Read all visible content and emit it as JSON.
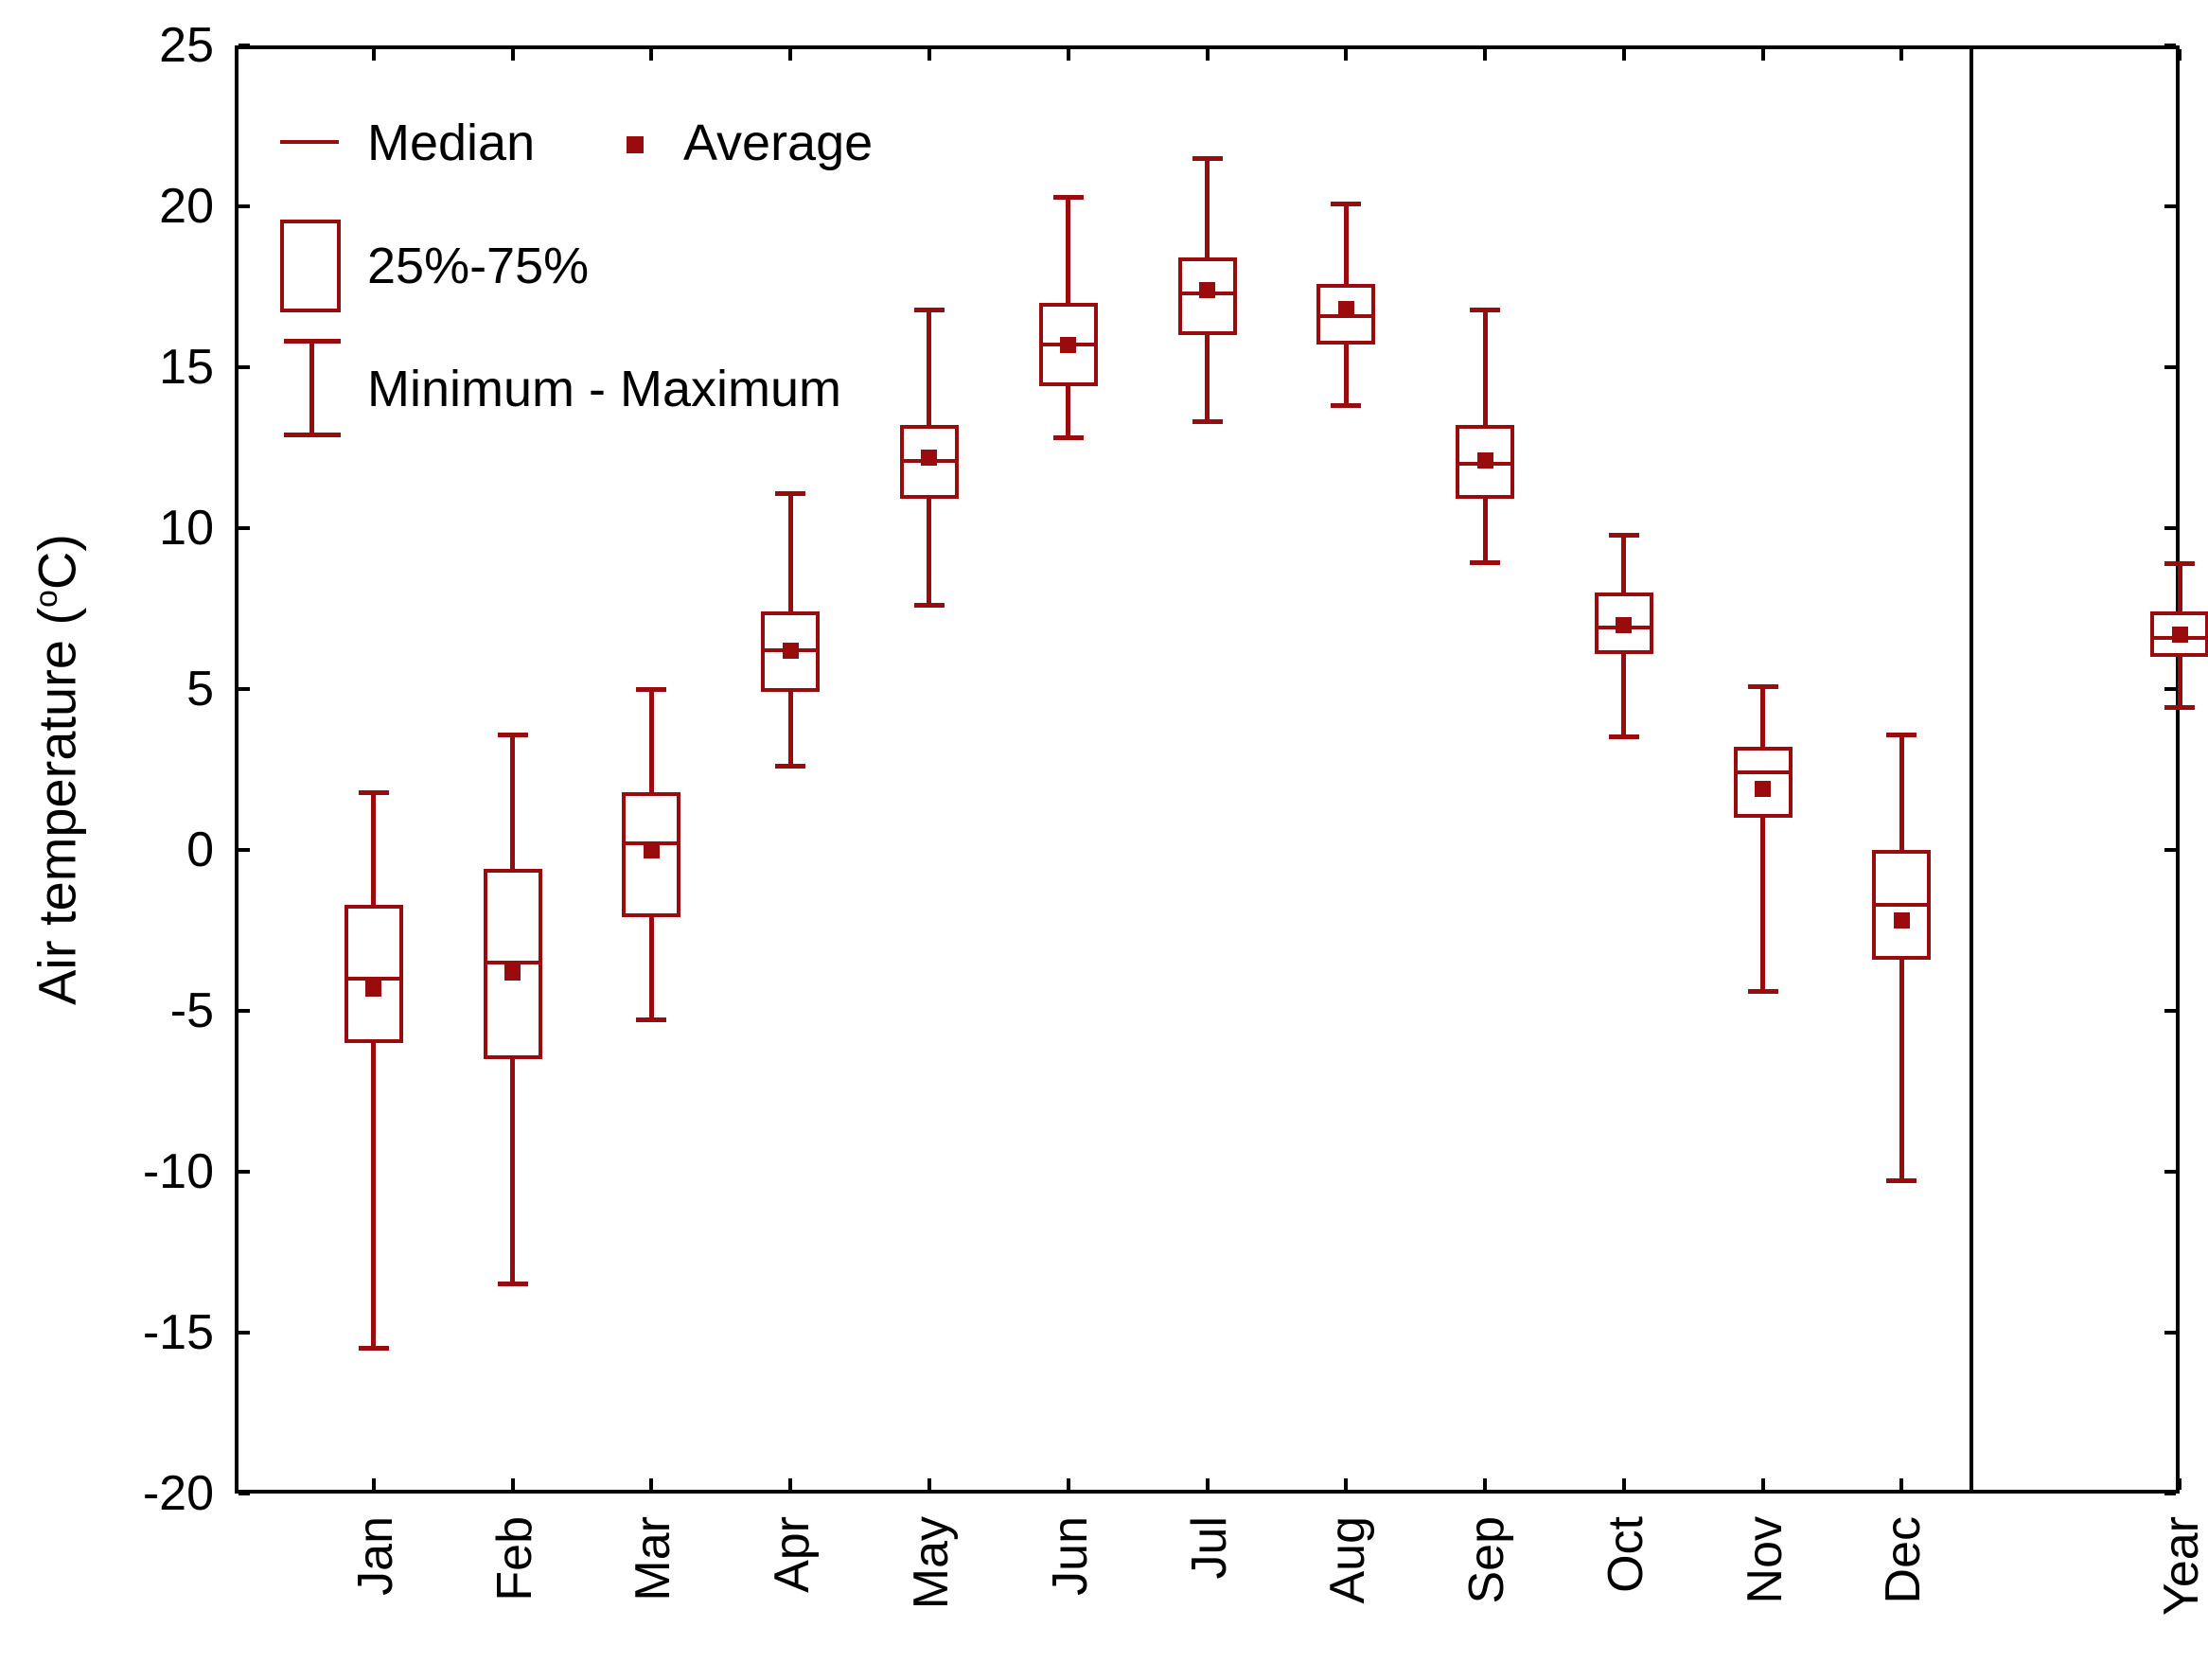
{
  "colors": {
    "series": "#9a0b0d",
    "axis": "#000000",
    "text": "#000000",
    "background": "#ffffff"
  },
  "y_axis": {
    "title_prefix": "Air temperature (",
    "title_sup": "o",
    "title_suffix": "C)"
  },
  "legend": {
    "median_label": "Median",
    "average_label": "Average",
    "box_label": "25%-75%",
    "whisker_label": "Minimum - Maximum"
  },
  "chart_data": {
    "type": "box",
    "title": "",
    "xlabel": "",
    "ylabel": "Air temperature (oC)",
    "ylim": [
      -20,
      25
    ],
    "ytick_step": 5,
    "ytick_values": [
      -20,
      -15,
      -10,
      -5,
      0,
      5,
      10,
      15,
      20,
      25
    ],
    "grid": false,
    "legend_position": "top-left-inside",
    "legend_entries": [
      "Median",
      "Average",
      "25%-75%",
      "Minimum - Maximum"
    ],
    "separator_before_category": "Year",
    "categories": [
      "Jan",
      "Feb",
      "Mar",
      "Apr",
      "May",
      "Jun",
      "Jul",
      "Aug",
      "Sep",
      "Oct",
      "Nov",
      "Dec",
      "Year"
    ],
    "series": [
      {
        "label": "Jan",
        "min": -15.5,
        "q1": -6.0,
        "median": -4.0,
        "average": -4.3,
        "q3": -1.7,
        "max": 1.8
      },
      {
        "label": "Feb",
        "min": -13.5,
        "q1": -6.5,
        "median": -3.5,
        "average": -3.8,
        "q3": -0.6,
        "max": 3.6
      },
      {
        "label": "Mar",
        "min": -5.3,
        "q1": -2.1,
        "median": 0.2,
        "average": 0.0,
        "q3": 1.8,
        "max": 5.0
      },
      {
        "label": "Apr",
        "min": 2.6,
        "q1": 4.9,
        "median": 6.2,
        "average": 6.2,
        "q3": 7.4,
        "max": 11.1
      },
      {
        "label": "May",
        "min": 7.6,
        "q1": 10.9,
        "median": 12.1,
        "average": 12.2,
        "q3": 13.2,
        "max": 16.8
      },
      {
        "label": "Jun",
        "min": 12.8,
        "q1": 14.4,
        "median": 15.7,
        "average": 15.7,
        "q3": 17.0,
        "max": 20.3
      },
      {
        "label": "Jul",
        "min": 13.3,
        "q1": 16.0,
        "median": 17.3,
        "average": 17.4,
        "q3": 18.4,
        "max": 21.5
      },
      {
        "label": "Aug",
        "min": 13.8,
        "q1": 15.7,
        "median": 16.6,
        "average": 16.8,
        "q3": 17.6,
        "max": 20.1
      },
      {
        "label": "Sep",
        "min": 8.9,
        "q1": 10.9,
        "median": 12.0,
        "average": 12.1,
        "q3": 13.2,
        "max": 16.8
      },
      {
        "label": "Oct",
        "min": 3.5,
        "q1": 6.1,
        "median": 6.9,
        "average": 7.0,
        "q3": 8.0,
        "max": 9.8
      },
      {
        "label": "Nov",
        "min": -4.4,
        "q1": 1.0,
        "median": 2.4,
        "average": 1.9,
        "q3": 3.2,
        "max": 5.1
      },
      {
        "label": "Dec",
        "min": -10.3,
        "q1": -3.4,
        "median": -1.7,
        "average": -2.2,
        "q3": 0.0,
        "max": 3.6
      },
      {
        "label": "Year",
        "min": 4.4,
        "q1": 6.0,
        "median": 6.6,
        "average": 6.7,
        "q3": 7.4,
        "max": 8.9
      }
    ]
  }
}
